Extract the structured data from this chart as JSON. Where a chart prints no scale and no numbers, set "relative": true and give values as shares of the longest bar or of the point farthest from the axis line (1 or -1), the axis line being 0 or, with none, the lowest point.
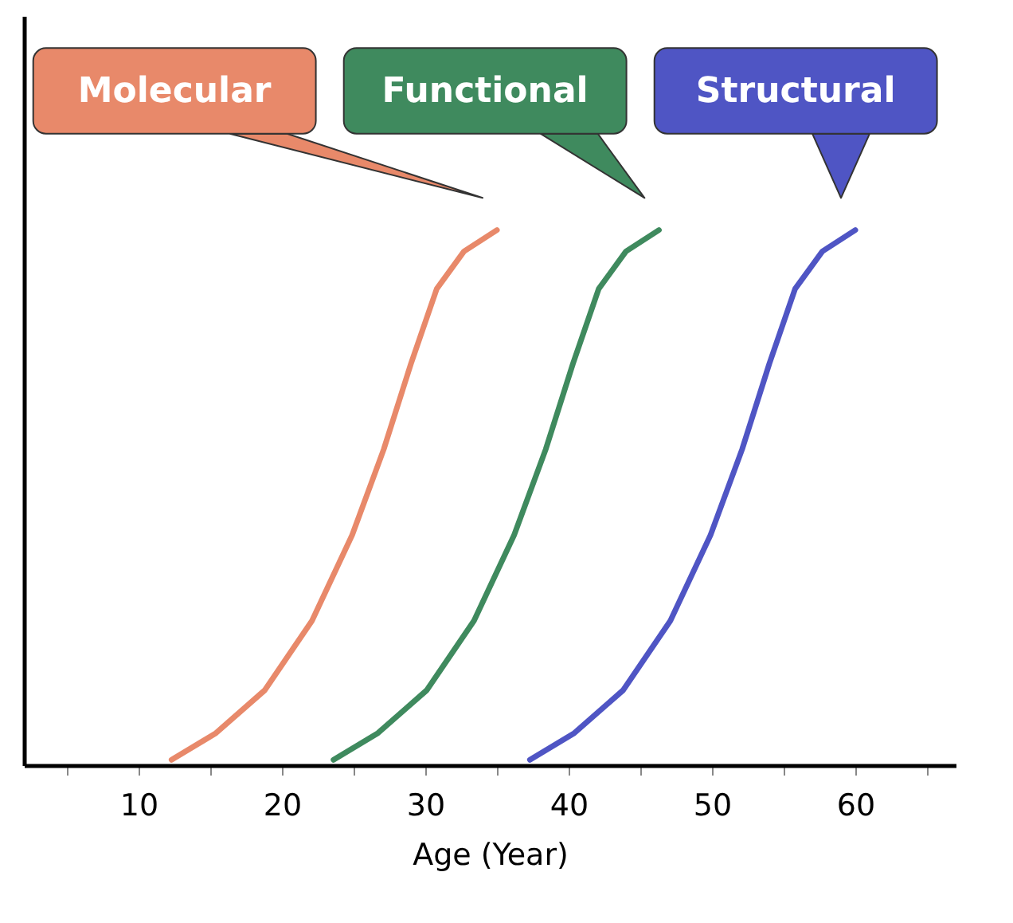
{
  "chart_data": {
    "type": "line",
    "relative": true,
    "xlabel": "Age (Year)",
    "xlim": [
      2,
      67
    ],
    "xticks": [
      {
        "value": 5,
        "label": null
      },
      10,
      {
        "value": 15,
        "label": null
      },
      20,
      {
        "value": 25,
        "label": null
      },
      30,
      {
        "value": 35,
        "label": null
      },
      40,
      {
        "value": 45,
        "label": null
      },
      50,
      {
        "value": 55,
        "label": null
      },
      60,
      {
        "value": 65,
        "label": null
      }
    ],
    "grid": false,
    "legend": false,
    "marker": "none",
    "line_style": "solid",
    "series": [
      {
        "name": "Molecular",
        "color": "#e8896a",
        "x": [
          12.3,
          15.4,
          18.8,
          22.1,
          24.9,
          27.1,
          29.0,
          30.8,
          32.7,
          35.0
        ],
        "values": [
          0.01,
          0.06,
          0.14,
          0.27,
          0.43,
          0.59,
          0.75,
          0.89,
          0.96,
          1.0
        ]
      },
      {
        "name": "Functional",
        "color": "#3f8a5e",
        "x": [
          23.6,
          26.7,
          30.1,
          33.4,
          36.2,
          38.4,
          40.3,
          42.1,
          44.0,
          46.3
        ],
        "values": [
          0.01,
          0.06,
          0.14,
          0.27,
          0.43,
          0.59,
          0.75,
          0.89,
          0.96,
          1.0
        ]
      },
      {
        "name": "Structural",
        "color": "#4f55c4",
        "x": [
          37.3,
          40.4,
          43.8,
          47.1,
          49.9,
          52.1,
          54.0,
          55.8,
          57.7,
          60.0
        ],
        "values": [
          0.01,
          0.06,
          0.14,
          0.27,
          0.43,
          0.59,
          0.75,
          0.89,
          0.96,
          1.0
        ]
      }
    ]
  }
}
